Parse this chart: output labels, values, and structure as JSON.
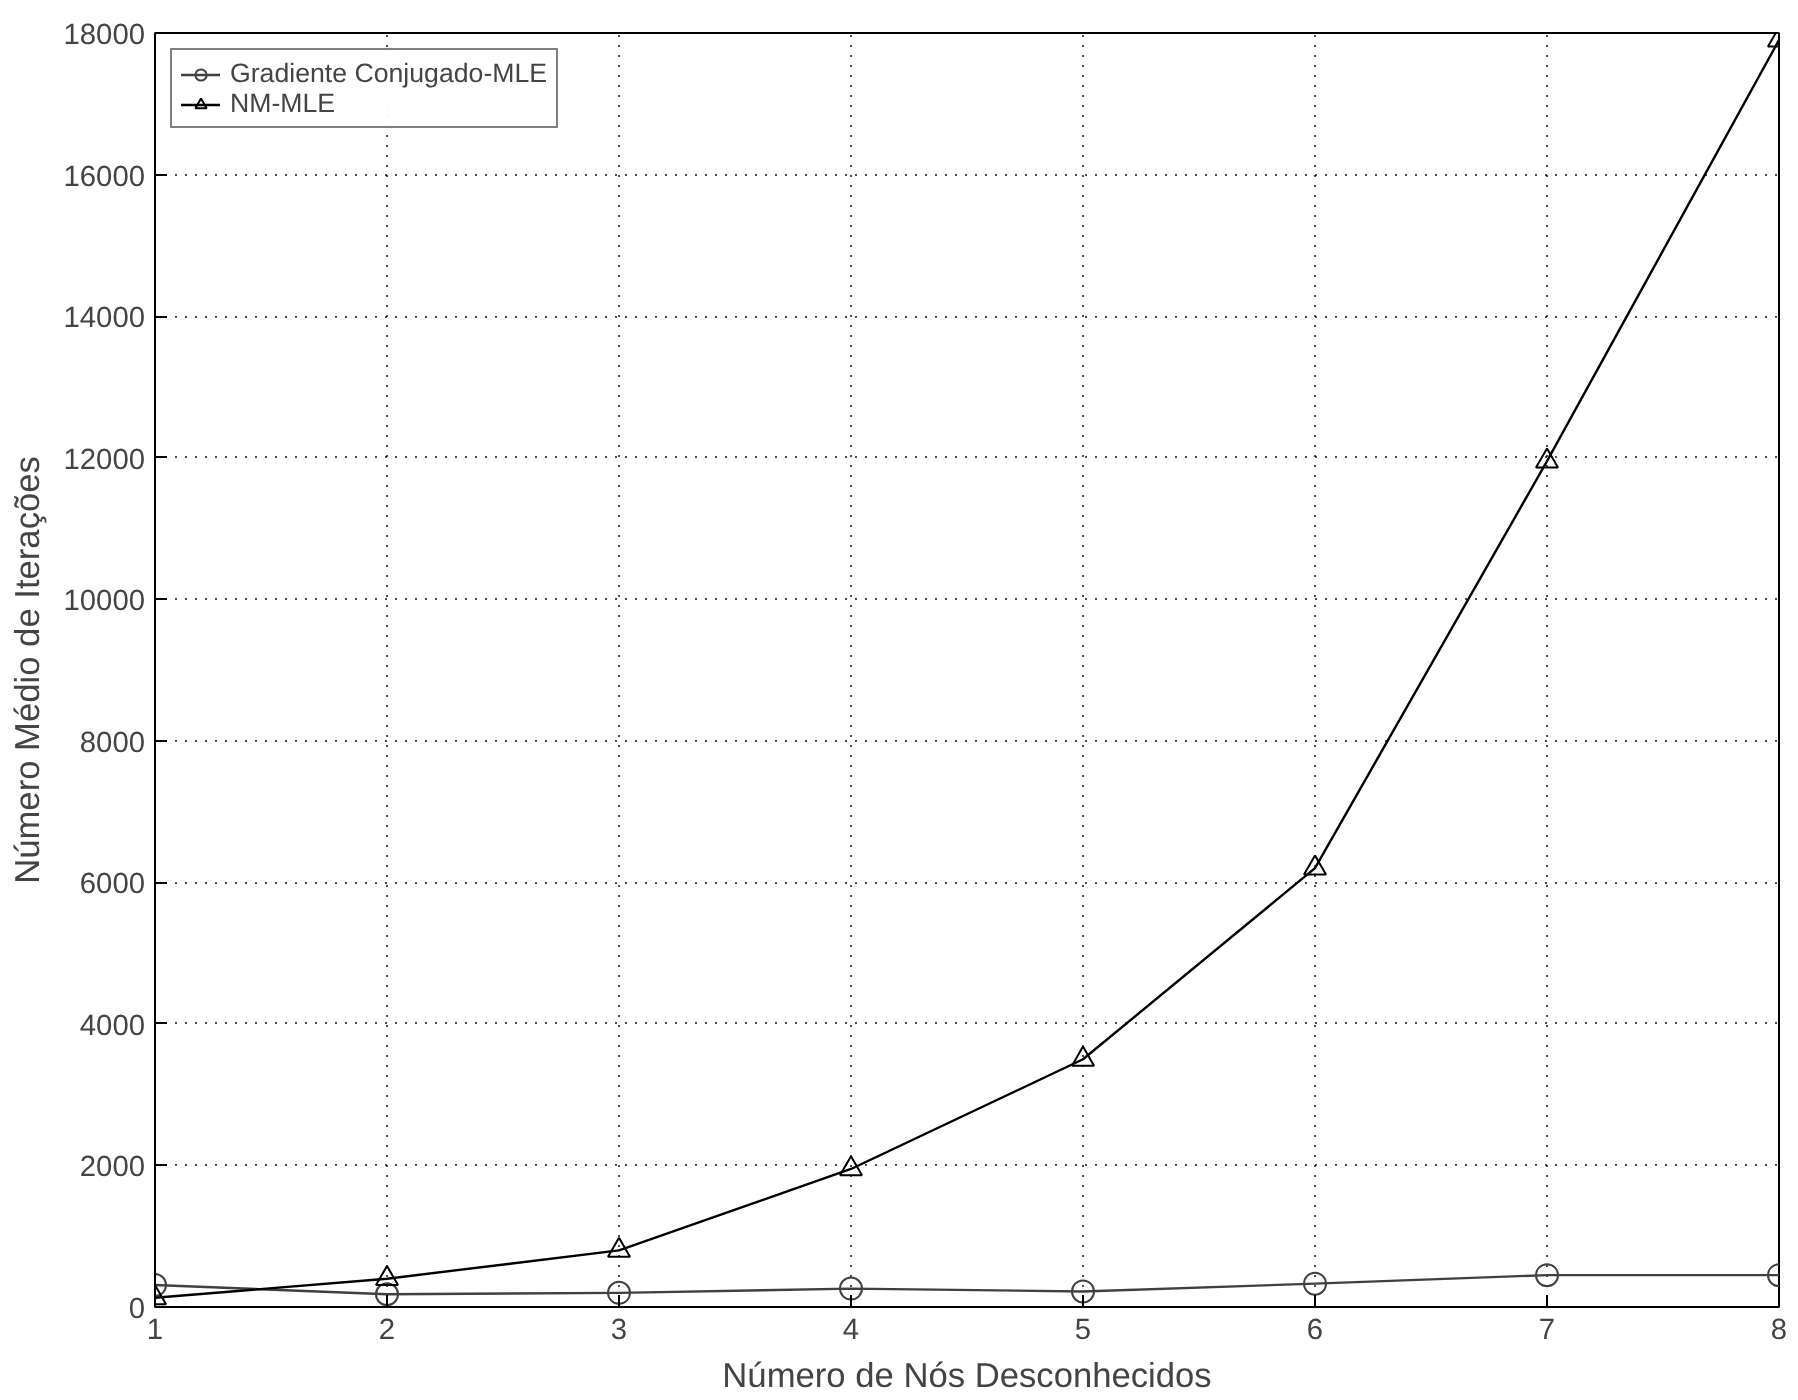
{
  "chart_data": {
    "type": "line",
    "xlabel": "Número de Nós Desconhecidos",
    "ylabel": "Número Médio de Iterações",
    "x": [
      1,
      2,
      3,
      4,
      5,
      6,
      7,
      8
    ],
    "series": [
      {
        "name": "Gradiente Conjugado-MLE",
        "color": "#404040",
        "marker": "circle",
        "values": [
          310,
          180,
          200,
          260,
          220,
          330,
          450,
          450
        ]
      },
      {
        "name": "NM-MLE",
        "color": "#000000",
        "marker": "triangle",
        "values": [
          130,
          400,
          800,
          1950,
          3500,
          6200,
          11950,
          17900
        ]
      }
    ],
    "xlim": [
      1,
      8
    ],
    "ylim": [
      0,
      18000
    ],
    "xticks": [
      1,
      2,
      3,
      4,
      5,
      6,
      7,
      8
    ],
    "yticks": [
      0,
      2000,
      4000,
      6000,
      8000,
      10000,
      12000,
      14000,
      16000,
      18000
    ],
    "grid": true,
    "legend": "top left",
    "line_style": "solid"
  }
}
